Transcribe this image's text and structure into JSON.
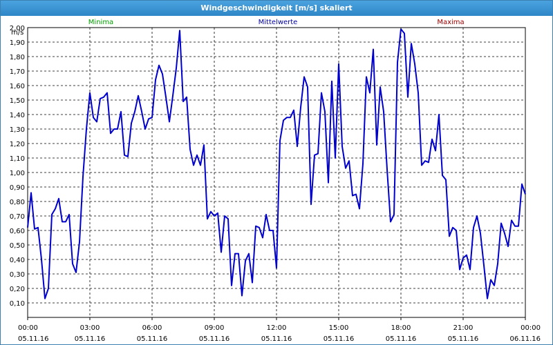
{
  "window": {
    "title": "Windgeschwindigkeit [m/s] skaliert"
  },
  "legend": {
    "minima": "Minima",
    "mittelwerte": "Mittelwerte",
    "maxima": "Maxima"
  },
  "colors": {
    "series": "#0000cc",
    "minima": "#00a000",
    "mittelwerte": "#0000a0",
    "maxima": "#a00000",
    "titlebar": "#3a90d0"
  },
  "chart_data": {
    "type": "line",
    "title": "Windgeschwindigkeit [m/s] skaliert",
    "ylabel": "m/s",
    "ylim": [
      0,
      2.0
    ],
    "xlim_hours": [
      0,
      24
    ],
    "y_ticks": [
      "0,10",
      "0,20",
      "0,30",
      "0,40",
      "0,50",
      "0,60",
      "0,70",
      "0,80",
      "0,90",
      "1,00",
      "1,10",
      "1,20",
      "1,30",
      "1,40",
      "1,50",
      "1,60",
      "1,70",
      "1,80",
      "1,90",
      "2,00"
    ],
    "x_ticks": [
      {
        "time": "00:00",
        "date": "05.11.16"
      },
      {
        "time": "03:00",
        "date": "05.11.16"
      },
      {
        "time": "06:00",
        "date": "05.11.16"
      },
      {
        "time": "09:00",
        "date": "05.11.16"
      },
      {
        "time": "12:00",
        "date": "05.11.16"
      },
      {
        "time": "15:00",
        "date": "05.11.16"
      },
      {
        "time": "18:00",
        "date": "05.11.16"
      },
      {
        "time": "21:00",
        "date": "05.11.16"
      },
      {
        "time": "00:00",
        "date": "06.11.16"
      }
    ],
    "grid": true,
    "series": [
      {
        "name": "Mittelwerte",
        "x": [
          "00:00",
          "00:10",
          "00:20",
          "00:30",
          "00:40",
          "00:50",
          "01:00",
          "01:10",
          "01:20",
          "01:30",
          "01:40",
          "01:50",
          "02:00",
          "02:10",
          "02:20",
          "02:30",
          "02:40",
          "02:50",
          "03:00",
          "03:10",
          "03:20",
          "03:30",
          "03:40",
          "03:50",
          "04:00",
          "04:10",
          "04:20",
          "04:30",
          "04:40",
          "04:50",
          "05:00",
          "05:10",
          "05:20",
          "05:30",
          "05:40",
          "05:50",
          "06:00",
          "06:10",
          "06:20",
          "06:30",
          "06:40",
          "06:50",
          "07:00",
          "07:10",
          "07:20",
          "07:30",
          "07:40",
          "07:50",
          "08:00",
          "08:10",
          "08:20",
          "08:30",
          "08:40",
          "08:50",
          "09:00",
          "09:10",
          "09:20",
          "09:30",
          "09:40",
          "09:50",
          "10:00",
          "10:10",
          "10:20",
          "10:30",
          "10:40",
          "10:50",
          "11:00",
          "11:10",
          "11:20",
          "11:30",
          "11:40",
          "11:50",
          "12:00",
          "12:10",
          "12:20",
          "12:30",
          "12:40",
          "12:50",
          "13:00",
          "13:10",
          "13:20",
          "13:30",
          "13:40",
          "13:50",
          "14:00",
          "14:10",
          "14:20",
          "14:30",
          "14:40",
          "14:50",
          "15:00",
          "15:10",
          "15:20",
          "15:30",
          "15:40",
          "15:50",
          "16:00",
          "16:10",
          "16:20",
          "16:30",
          "16:40",
          "16:50",
          "17:00",
          "17:10",
          "17:20",
          "17:30",
          "17:40",
          "17:50",
          "18:00",
          "18:10",
          "18:20",
          "18:30",
          "18:40",
          "18:50",
          "19:00",
          "19:10",
          "19:20",
          "19:30",
          "19:40",
          "19:50",
          "20:00",
          "20:10",
          "20:20",
          "20:30",
          "20:40",
          "20:50",
          "21:00",
          "21:10",
          "21:20",
          "21:30",
          "21:40",
          "21:50",
          "22:00",
          "22:10",
          "22:20",
          "22:30",
          "22:40",
          "22:50",
          "23:00",
          "23:10",
          "23:20",
          "23:30",
          "23:40",
          "23:50",
          "24:00"
        ],
        "y": [
          0.62,
          0.86,
          0.61,
          0.62,
          0.4,
          0.13,
          0.2,
          0.71,
          0.75,
          0.82,
          0.66,
          0.66,
          0.71,
          0.37,
          0.31,
          0.52,
          0.97,
          1.3,
          1.55,
          1.38,
          1.35,
          1.51,
          1.52,
          1.55,
          1.27,
          1.3,
          1.3,
          1.42,
          1.12,
          1.11,
          1.34,
          1.42,
          1.53,
          1.42,
          1.3,
          1.37,
          1.38,
          1.64,
          1.74,
          1.68,
          1.52,
          1.35,
          1.53,
          1.72,
          1.98,
          1.49,
          1.52,
          1.16,
          1.05,
          1.12,
          1.05,
          1.19,
          0.68,
          0.73,
          0.7,
          0.72,
          0.45,
          0.7,
          0.68,
          0.22,
          0.44,
          0.44,
          0.15,
          0.39,
          0.44,
          0.24,
          0.63,
          0.62,
          0.55,
          0.71,
          0.6,
          0.6,
          0.34,
          1.22,
          1.36,
          1.38,
          1.38,
          1.43,
          1.18,
          1.45,
          1.66,
          1.59,
          0.78,
          1.12,
          1.13,
          1.55,
          1.42,
          0.93,
          1.63,
          1.1,
          1.75,
          1.18,
          1.03,
          1.08,
          0.84,
          0.85,
          0.75,
          1.06,
          1.66,
          1.55,
          1.85,
          1.19,
          1.59,
          1.42,
          1.02,
          0.66,
          0.71,
          1.76,
          1.99,
          1.96,
          1.52,
          1.89,
          1.75,
          1.55,
          1.05,
          1.08,
          1.07,
          1.23,
          1.15,
          1.4,
          0.98,
          0.95,
          0.56,
          0.62,
          0.6,
          0.33,
          0.41,
          0.43,
          0.33,
          0.62,
          0.7,
          0.58,
          0.36,
          0.13,
          0.26,
          0.22,
          0.37,
          0.65,
          0.58,
          0.49,
          0.67,
          0.63,
          0.63,
          0.92,
          0.85
        ]
      }
    ]
  }
}
